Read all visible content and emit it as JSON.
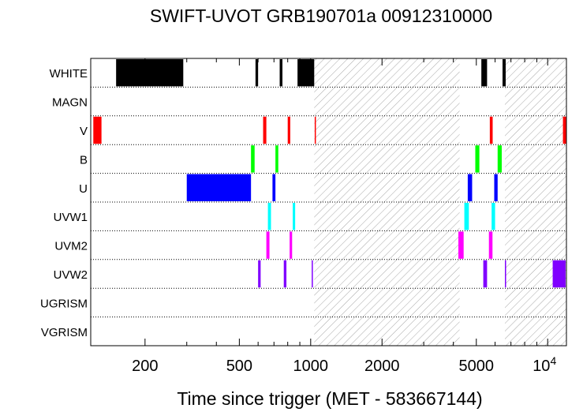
{
  "chart_data": {
    "type": "timeline",
    "title": "SWIFT-UVOT GRB190701a 00912310000",
    "xlabel": "Time since trigger (MET - 583667144)",
    "xscale": "log",
    "xlim": [
      118,
      12000
    ],
    "xticks": [
      {
        "value": 200,
        "label": "200"
      },
      {
        "value": 500,
        "label": "500"
      },
      {
        "value": 1000,
        "label": "1000"
      },
      {
        "value": 2000,
        "label": "2000"
      },
      {
        "value": 5000,
        "label": "5000"
      },
      {
        "value": 10000,
        "label": "10",
        "sup": "4"
      }
    ],
    "filters": [
      "WHITE",
      "MAGN",
      "V",
      "B",
      "U",
      "UVW1",
      "UVM2",
      "UVW2",
      "UGRISM",
      "VGRISM"
    ],
    "colors": {
      "WHITE": "#000000",
      "V": "#ff0000",
      "B": "#00ff00",
      "U": "#0000ff",
      "UVW1": "#00ffff",
      "UVM2": "#ff00ff",
      "UVW2": "#8000ff"
    },
    "gaps": [
      [
        1035,
        4250
      ],
      [
        6600,
        12000
      ]
    ],
    "exposures": [
      {
        "filter": "WHITE",
        "start": 151,
        "end": 290
      },
      {
        "filter": "WHITE",
        "start": 585,
        "end": 600
      },
      {
        "filter": "WHITE",
        "start": 740,
        "end": 760
      },
      {
        "filter": "WHITE",
        "start": 880,
        "end": 1035
      },
      {
        "filter": "WHITE",
        "start": 5250,
        "end": 5550
      },
      {
        "filter": "WHITE",
        "start": 6450,
        "end": 6650
      },
      {
        "filter": "V",
        "start": 121,
        "end": 131
      },
      {
        "filter": "V",
        "start": 630,
        "end": 650
      },
      {
        "filter": "V",
        "start": 800,
        "end": 820
      },
      {
        "filter": "V",
        "start": 1040,
        "end": 1045
      },
      {
        "filter": "V",
        "start": 5700,
        "end": 5860
      },
      {
        "filter": "V",
        "start": 11600,
        "end": 12000
      },
      {
        "filter": "B",
        "start": 560,
        "end": 580
      },
      {
        "filter": "B",
        "start": 710,
        "end": 730
      },
      {
        "filter": "B",
        "start": 4950,
        "end": 5150
      },
      {
        "filter": "B",
        "start": 6150,
        "end": 6400
      },
      {
        "filter": "U",
        "start": 300,
        "end": 560
      },
      {
        "filter": "U",
        "start": 690,
        "end": 710
      },
      {
        "filter": "U",
        "start": 4600,
        "end": 4800
      },
      {
        "filter": "U",
        "start": 5950,
        "end": 6150
      },
      {
        "filter": "UVW1",
        "start": 660,
        "end": 680
      },
      {
        "filter": "UVW1",
        "start": 840,
        "end": 860
      },
      {
        "filter": "UVW1",
        "start": 4450,
        "end": 4650
      },
      {
        "filter": "UVW1",
        "start": 5800,
        "end": 6000
      },
      {
        "filter": "UVM2",
        "start": 650,
        "end": 670
      },
      {
        "filter": "UVM2",
        "start": 815,
        "end": 835
      },
      {
        "filter": "UVM2",
        "start": 4200,
        "end": 4420
      },
      {
        "filter": "UVM2",
        "start": 5650,
        "end": 5850
      },
      {
        "filter": "UVW2",
        "start": 600,
        "end": 615
      },
      {
        "filter": "UVW2",
        "start": 770,
        "end": 790
      },
      {
        "filter": "UVW2",
        "start": 1010,
        "end": 1020
      },
      {
        "filter": "UVW2",
        "start": 5350,
        "end": 5550
      },
      {
        "filter": "UVW2",
        "start": 6600,
        "end": 6620
      },
      {
        "filter": "UVW2",
        "start": 10500,
        "end": 11900
      }
    ],
    "grid": "dotted row separators"
  }
}
